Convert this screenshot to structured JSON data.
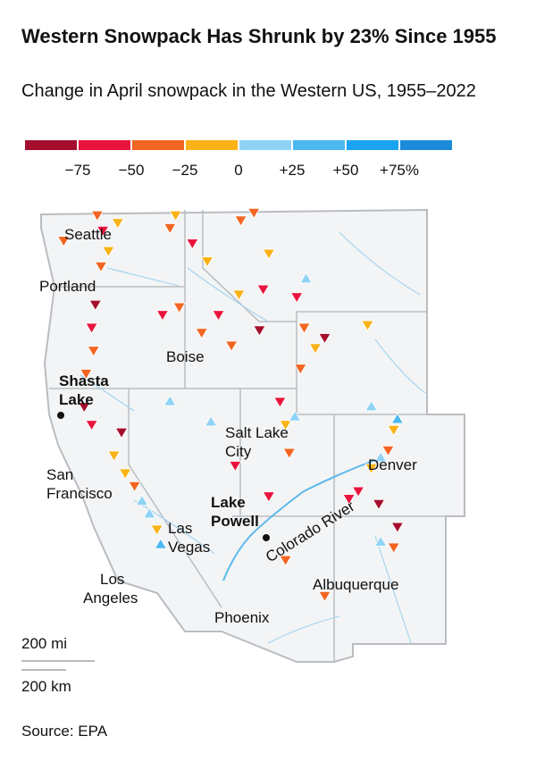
{
  "header": {
    "title": "Western Snowpack Has Shrunk by 23% Since 1955",
    "subtitle": "Change in April snowpack in the Western US, 1955–2022"
  },
  "legend": {
    "colors": [
      "#a50f2d",
      "#e8143c",
      "#f26522",
      "#f9b217",
      "#8fd3f5",
      "#4cb8f0",
      "#1aa3ee",
      "#1b8bd9"
    ],
    "ticks": [
      {
        "value": -75,
        "label": "−75"
      },
      {
        "value": -50,
        "label": "−50"
      },
      {
        "value": -25,
        "label": "−25"
      },
      0,
      {
        "value": 25,
        "label": "+25"
      },
      {
        "value": 50,
        "label": "+50"
      },
      {
        "value": 75,
        "label": "+75%"
      }
    ]
  },
  "map": {
    "cities": [
      {
        "lines": [
          "Seattle"
        ]
      },
      {
        "lines": [
          "Portland"
        ]
      },
      {
        "lines": [
          "Boise"
        ]
      },
      {
        "lines": [
          "Shasta",
          "Lake"
        ]
      },
      {
        "lines": [
          "Salt Lake",
          "City"
        ]
      },
      {
        "lines": [
          "Denver"
        ]
      },
      {
        "lines": [
          "San",
          "Francisco"
        ]
      },
      {
        "lines": [
          "Lake",
          "Powell"
        ]
      },
      {
        "lines": [
          "Las",
          "Vegas"
        ]
      },
      {
        "lines": [
          "Los",
          "Angeles"
        ]
      },
      {
        "lines": [
          "Albuquerque"
        ]
      },
      {
        "lines": [
          "Phoenix"
        ]
      }
    ],
    "river": "Colorado River",
    "scale": [
      "200 mi",
      "200 km"
    ],
    "sites": [
      {
        "lon": -123.5,
        "lat": 47.8,
        "change": -40
      },
      {
        "lon": -121.7,
        "lat": 48.8,
        "change": -30
      },
      {
        "lon": -121.4,
        "lat": 48.2,
        "change": -55
      },
      {
        "lon": -121.1,
        "lat": 47.4,
        "change": -20
      },
      {
        "lon": -121.5,
        "lat": 46.8,
        "change": -35
      },
      {
        "lon": -120.6,
        "lat": 48.5,
        "change": -15
      },
      {
        "lon": -117.5,
        "lat": 48.8,
        "change": -20
      },
      {
        "lon": -117.8,
        "lat": 48.3,
        "change": -45
      },
      {
        "lon": -121.8,
        "lat": 45.3,
        "change": -80
      },
      {
        "lon": -122.0,
        "lat": 44.4,
        "change": -60
      },
      {
        "lon": -121.9,
        "lat": 43.5,
        "change": -30
      },
      {
        "lon": -122.3,
        "lat": 42.6,
        "change": -50
      },
      {
        "lon": -118.2,
        "lat": 44.9,
        "change": -70
      },
      {
        "lon": -117.3,
        "lat": 45.2,
        "change": -40
      },
      {
        "lon": -122.4,
        "lat": 41.3,
        "change": -85
      },
      {
        "lon": -122.0,
        "lat": 40.6,
        "change": -55
      },
      {
        "lon": -120.8,
        "lat": 39.4,
        "change": -20
      },
      {
        "lon": -120.2,
        "lat": 38.7,
        "change": -10
      },
      {
        "lon": -119.7,
        "lat": 38.2,
        "change": -35
      },
      {
        "lon": -119.3,
        "lat": 37.6,
        "change": 10
      },
      {
        "lon": -118.9,
        "lat": 37.1,
        "change": 15
      },
      {
        "lon": -118.5,
        "lat": 36.5,
        "change": -25
      },
      {
        "lon": -118.3,
        "lat": 35.9,
        "change": 30
      },
      {
        "lon": -120.4,
        "lat": 40.3,
        "change": -90
      },
      {
        "lon": -117.8,
        "lat": 41.5,
        "change": 5
      },
      {
        "lon": -116.1,
        "lat": 44.2,
        "change": -30
      },
      {
        "lon": -115.2,
        "lat": 44.9,
        "change": -65
      },
      {
        "lon": -114.5,
        "lat": 43.7,
        "change": -45
      },
      {
        "lon": -114.1,
        "lat": 45.7,
        "change": -15
      },
      {
        "lon": -116.6,
        "lat": 47.7,
        "change": -60
      },
      {
        "lon": -115.8,
        "lat": 47.0,
        "change": -25
      },
      {
        "lon": -113.0,
        "lat": 44.3,
        "change": -80
      },
      {
        "lon": -114.0,
        "lat": 48.6,
        "change": -50
      },
      {
        "lon": -113.3,
        "lat": 48.9,
        "change": -35
      },
      {
        "lon": -112.5,
        "lat": 47.3,
        "change": -20
      },
      {
        "lon": -111.0,
        "lat": 45.6,
        "change": -55
      },
      {
        "lon": -110.5,
        "lat": 46.3,
        "change": 10
      },
      {
        "lon": -112.8,
        "lat": 45.9,
        "change": -70
      },
      {
        "lon": -110.6,
        "lat": 44.4,
        "change": -40
      },
      {
        "lon": -110.0,
        "lat": 43.6,
        "change": -25
      },
      {
        "lon": -109.5,
        "lat": 44.0,
        "change": -85
      },
      {
        "lon": -107.2,
        "lat": 44.5,
        "change": -15
      },
      {
        "lon": -110.8,
        "lat": 42.8,
        "change": -50
      },
      {
        "lon": -107.0,
        "lat": 41.3,
        "change": 20
      },
      {
        "lon": -111.6,
        "lat": 40.6,
        "change": -20
      },
      {
        "lon": -111.1,
        "lat": 40.9,
        "change": 15
      },
      {
        "lon": -111.9,
        "lat": 41.5,
        "change": -60
      },
      {
        "lon": -111.4,
        "lat": 39.5,
        "change": -30
      },
      {
        "lon": -112.5,
        "lat": 37.8,
        "change": -75
      },
      {
        "lon": -115.6,
        "lat": 40.7,
        "change": 20
      },
      {
        "lon": -114.3,
        "lat": 39.0,
        "change": -70
      },
      {
        "lon": -105.8,
        "lat": 40.4,
        "change": -25
      },
      {
        "lon": -106.1,
        "lat": 39.6,
        "change": -45
      },
      {
        "lon": -106.5,
        "lat": 39.3,
        "change": 10
      },
      {
        "lon": -107.7,
        "lat": 38.0,
        "change": -55
      },
      {
        "lon": -107.0,
        "lat": 38.9,
        "change": -20
      },
      {
        "lon": -106.6,
        "lat": 37.5,
        "change": -80
      },
      {
        "lon": -105.6,
        "lat": 40.8,
        "change": 30
      },
      {
        "lon": -108.2,
        "lat": 37.7,
        "change": -65
      },
      {
        "lon": -105.6,
        "lat": 36.6,
        "change": -90
      },
      {
        "lon": -105.8,
        "lat": 35.8,
        "change": -40
      },
      {
        "lon": -106.5,
        "lat": 36.0,
        "change": 15
      },
      {
        "lon": -111.6,
        "lat": 35.3,
        "change": -45
      },
      {
        "lon": -109.5,
        "lat": 33.9,
        "change": -35
      }
    ]
  },
  "footer": {
    "source": "Source: EPA"
  }
}
